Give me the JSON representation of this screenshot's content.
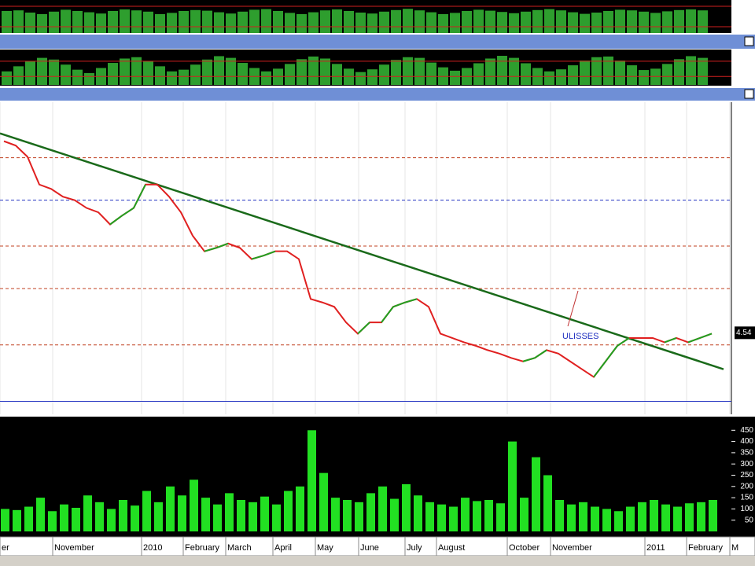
{
  "chart_data": [
    {
      "type": "bar",
      "ylim": [
        0,
        100
      ],
      "levels": [
        85,
        20
      ],
      "values": [
        70,
        72,
        65,
        60,
        68,
        74,
        70,
        66,
        62,
        70,
        75,
        72,
        68,
        60,
        64,
        70,
        73,
        71,
        66,
        62,
        68,
        74,
        76,
        70,
        64,
        60,
        66,
        72,
        75,
        70,
        65,
        62,
        68,
        73,
        77,
        72,
        66,
        60,
        64,
        70,
        74,
        71,
        67,
        63,
        68,
        73,
        76,
        72,
        66,
        61,
        65,
        70,
        74,
        72,
        68,
        64,
        69,
        73,
        75,
        72
      ]
    },
    {
      "type": "bar",
      "ylim": [
        0,
        100
      ],
      "levels": [
        70,
        25
      ],
      "values": [
        40,
        55,
        70,
        80,
        75,
        60,
        45,
        35,
        50,
        65,
        78,
        82,
        70,
        55,
        40,
        45,
        60,
        75,
        85,
        80,
        65,
        50,
        40,
        48,
        62,
        76,
        84,
        78,
        62,
        48,
        38,
        46,
        60,
        74,
        82,
        80,
        66,
        52,
        42,
        50,
        64,
        78,
        86,
        80,
        64,
        50,
        40,
        46,
        58,
        72,
        82,
        84,
        72,
        58,
        44,
        48,
        62,
        76,
        85,
        80
      ]
    },
    {
      "type": "line",
      "ylim": [
        3.6,
        7.2
      ],
      "annotation": "ULISSES",
      "last_value": 4.54,
      "levels": [
        6.56,
        6.07,
        5.54,
        5.05,
        4.4,
        3.75
      ],
      "trendline": [
        6.84,
        4.12
      ],
      "values": [
        6.75,
        6.7,
        6.57,
        6.25,
        6.2,
        6.11,
        6.07,
        5.98,
        5.93,
        5.79,
        5.89,
        5.98,
        6.25,
        6.25,
        6.11,
        5.93,
        5.66,
        5.48,
        5.52,
        5.57,
        5.52,
        5.39,
        5.43,
        5.48,
        5.48,
        5.39,
        4.93,
        4.89,
        4.84,
        4.66,
        4.53,
        4.66,
        4.66,
        4.84,
        4.89,
        4.93,
        4.84,
        4.53,
        4.48,
        4.43,
        4.39,
        4.34,
        4.3,
        4.25,
        4.21,
        4.25,
        4.34,
        4.3,
        4.21,
        4.12,
        4.03,
        4.21,
        4.39,
        4.48,
        4.48,
        4.48,
        4.43,
        4.48,
        4.43,
        4.48,
        4.53
      ]
    },
    {
      "type": "bar",
      "ylim": [
        0,
        500
      ],
      "yticks": [
        50,
        100,
        150,
        200,
        250,
        300,
        350,
        400,
        450
      ],
      "values": [
        100,
        95,
        110,
        150,
        90,
        120,
        105,
        160,
        130,
        100,
        140,
        115,
        180,
        130,
        200,
        160,
        230,
        150,
        120,
        170,
        140,
        130,
        155,
        120,
        180,
        200,
        450,
        260,
        150,
        140,
        130,
        170,
        200,
        145,
        210,
        160,
        130,
        120,
        110,
        150,
        135,
        140,
        125,
        400,
        150,
        330,
        250,
        140,
        120,
        130,
        110,
        100,
        90,
        110,
        130,
        140,
        120,
        110,
        125,
        130,
        140
      ]
    }
  ],
  "x_axis": {
    "labels": [
      "er",
      "November",
      "2010",
      "February",
      "March",
      "April",
      "May",
      "June",
      "July",
      "August",
      "October",
      "November",
      "2011",
      "February",
      "M"
    ]
  }
}
